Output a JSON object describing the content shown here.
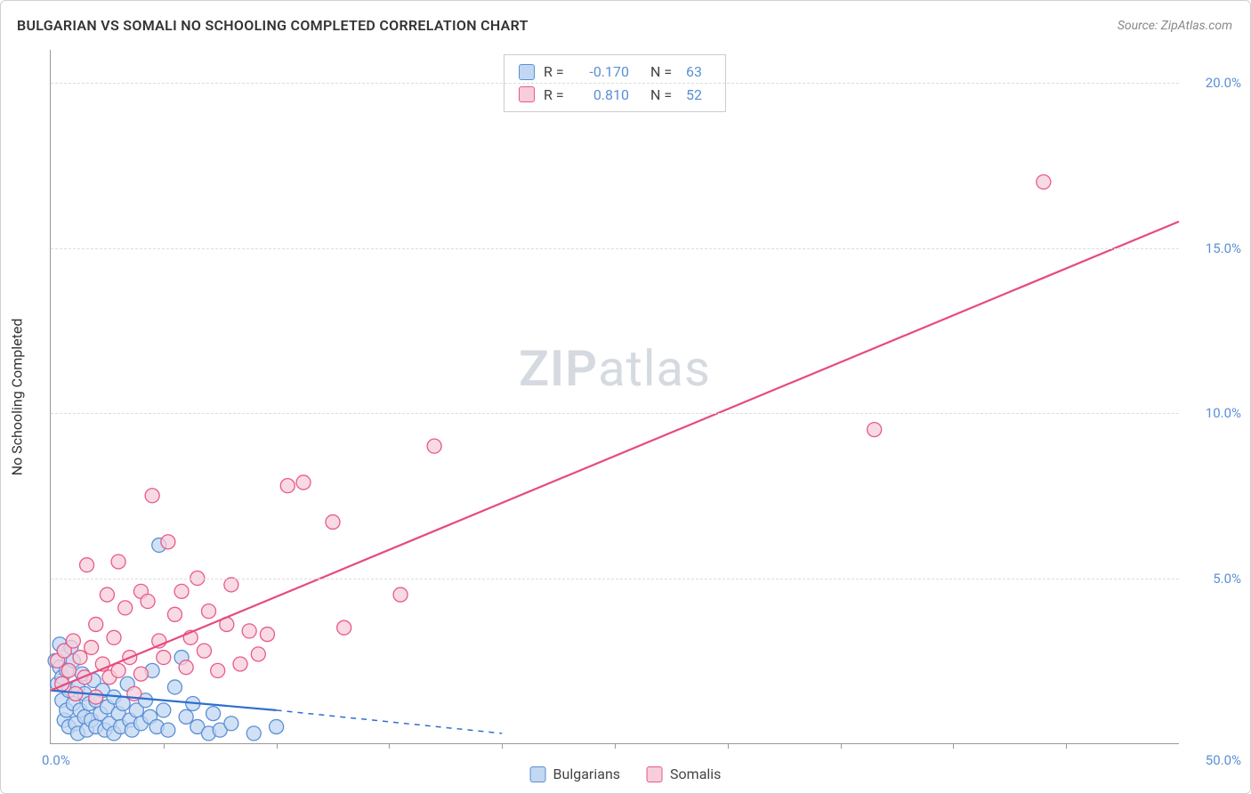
{
  "title": "BULGARIAN VS SOMALI NO SCHOOLING COMPLETED CORRELATION CHART",
  "source": "Source: ZipAtlas.com",
  "y_axis_title": "No Schooling Completed",
  "watermark_a": "ZIP",
  "watermark_b": "atlas",
  "chart": {
    "type": "scatter",
    "xlim": [
      0,
      50
    ],
    "ylim": [
      0,
      21
    ],
    "x_origin_label": "0.0%",
    "x_end_label": "50.0%",
    "x_tick_positions": [
      5,
      10,
      15,
      20,
      25,
      30,
      35,
      40,
      45
    ],
    "y_ticks": [
      {
        "v": 5,
        "label": "5.0%"
      },
      {
        "v": 10,
        "label": "10.0%"
      },
      {
        "v": 15,
        "label": "15.0%"
      },
      {
        "v": 20,
        "label": "20.0%"
      }
    ],
    "grid_color": "#dddddd",
    "axis_color": "#999999",
    "tick_label_color": "#5b8fd6",
    "marker_radius": 8,
    "marker_stroke_width": 1.3,
    "line_width": 2.2,
    "series": [
      {
        "name": "Bulgarians",
        "fill": "#c2d7f2",
        "stroke": "#5b8fd6",
        "line_color": "#2f6fcf",
        "r": -0.17,
        "n": 63,
        "trend_solid": {
          "x1": 0,
          "y1": 1.6,
          "x2": 10,
          "y2": 1.0
        },
        "trend_dash": {
          "x1": 10,
          "y1": 1.0,
          "x2": 20,
          "y2": 0.3
        },
        "points": [
          [
            0.2,
            2.5
          ],
          [
            0.3,
            1.8
          ],
          [
            0.4,
            2.3
          ],
          [
            0.4,
            3.0
          ],
          [
            0.5,
            2.0
          ],
          [
            0.5,
            1.3
          ],
          [
            0.6,
            2.8
          ],
          [
            0.6,
            0.7
          ],
          [
            0.7,
            1.0
          ],
          [
            0.7,
            2.2
          ],
          [
            0.8,
            1.6
          ],
          [
            0.8,
            0.5
          ],
          [
            0.9,
            2.9
          ],
          [
            1.0,
            1.2
          ],
          [
            1.0,
            2.5
          ],
          [
            1.1,
            0.6
          ],
          [
            1.2,
            1.7
          ],
          [
            1.2,
            0.3
          ],
          [
            1.3,
            1.0
          ],
          [
            1.4,
            2.1
          ],
          [
            1.5,
            0.8
          ],
          [
            1.5,
            1.5
          ],
          [
            1.6,
            0.4
          ],
          [
            1.7,
            1.2
          ],
          [
            1.8,
            0.7
          ],
          [
            1.9,
            1.9
          ],
          [
            2.0,
            0.5
          ],
          [
            2.0,
            1.3
          ],
          [
            2.2,
            0.9
          ],
          [
            2.3,
            1.6
          ],
          [
            2.4,
            0.4
          ],
          [
            2.5,
            1.1
          ],
          [
            2.6,
            0.6
          ],
          [
            2.8,
            1.4
          ],
          [
            2.8,
            0.3
          ],
          [
            3.0,
            0.9
          ],
          [
            3.1,
            0.5
          ],
          [
            3.2,
            1.2
          ],
          [
            3.4,
            1.8
          ],
          [
            3.5,
            0.7
          ],
          [
            3.6,
            0.4
          ],
          [
            3.8,
            1.0
          ],
          [
            4.0,
            0.6
          ],
          [
            4.2,
            1.3
          ],
          [
            4.4,
            0.8
          ],
          [
            4.5,
            2.2
          ],
          [
            4.7,
            0.5
          ],
          [
            4.8,
            6.0
          ],
          [
            5.0,
            1.0
          ],
          [
            5.2,
            0.4
          ],
          [
            5.5,
            1.7
          ],
          [
            5.8,
            2.6
          ],
          [
            6.0,
            0.8
          ],
          [
            6.3,
            1.2
          ],
          [
            6.5,
            0.5
          ],
          [
            7.0,
            0.3
          ],
          [
            7.2,
            0.9
          ],
          [
            7.5,
            0.4
          ],
          [
            8.0,
            0.6
          ],
          [
            9.0,
            0.3
          ],
          [
            10.0,
            0.5
          ]
        ]
      },
      {
        "name": "Somalis",
        "fill": "#f7cdd9",
        "stroke": "#e85a8a",
        "line_color": "#e64b7e",
        "r": 0.81,
        "n": 52,
        "trend_solid": {
          "x1": 0,
          "y1": 1.6,
          "x2": 50,
          "y2": 15.8
        },
        "trend_dash": null,
        "points": [
          [
            0.3,
            2.5
          ],
          [
            0.5,
            1.8
          ],
          [
            0.6,
            2.8
          ],
          [
            0.8,
            2.2
          ],
          [
            1.0,
            3.1
          ],
          [
            1.1,
            1.5
          ],
          [
            1.3,
            2.6
          ],
          [
            1.5,
            2.0
          ],
          [
            1.6,
            5.4
          ],
          [
            1.8,
            2.9
          ],
          [
            2.0,
            3.6
          ],
          [
            2.0,
            1.4
          ],
          [
            2.3,
            2.4
          ],
          [
            2.5,
            4.5
          ],
          [
            2.6,
            2.0
          ],
          [
            2.8,
            3.2
          ],
          [
            3.0,
            5.5
          ],
          [
            3.0,
            2.2
          ],
          [
            3.3,
            4.1
          ],
          [
            3.5,
            2.6
          ],
          [
            3.7,
            1.5
          ],
          [
            4.0,
            4.6
          ],
          [
            4.0,
            2.1
          ],
          [
            4.3,
            4.3
          ],
          [
            4.5,
            7.5
          ],
          [
            4.8,
            3.1
          ],
          [
            5.0,
            2.6
          ],
          [
            5.2,
            6.1
          ],
          [
            5.5,
            3.9
          ],
          [
            5.8,
            4.6
          ],
          [
            6.0,
            2.3
          ],
          [
            6.2,
            3.2
          ],
          [
            6.5,
            5.0
          ],
          [
            6.8,
            2.8
          ],
          [
            7.0,
            4.0
          ],
          [
            7.4,
            2.2
          ],
          [
            7.8,
            3.6
          ],
          [
            8.0,
            4.8
          ],
          [
            8.4,
            2.4
          ],
          [
            8.8,
            3.4
          ],
          [
            9.2,
            2.7
          ],
          [
            9.6,
            3.3
          ],
          [
            10.5,
            7.8
          ],
          [
            11.2,
            7.9
          ],
          [
            12.5,
            6.7
          ],
          [
            13.0,
            3.5
          ],
          [
            15.5,
            4.5
          ],
          [
            17.0,
            9.0
          ],
          [
            36.5,
            9.5
          ],
          [
            44.0,
            17.0
          ]
        ]
      }
    ]
  }
}
